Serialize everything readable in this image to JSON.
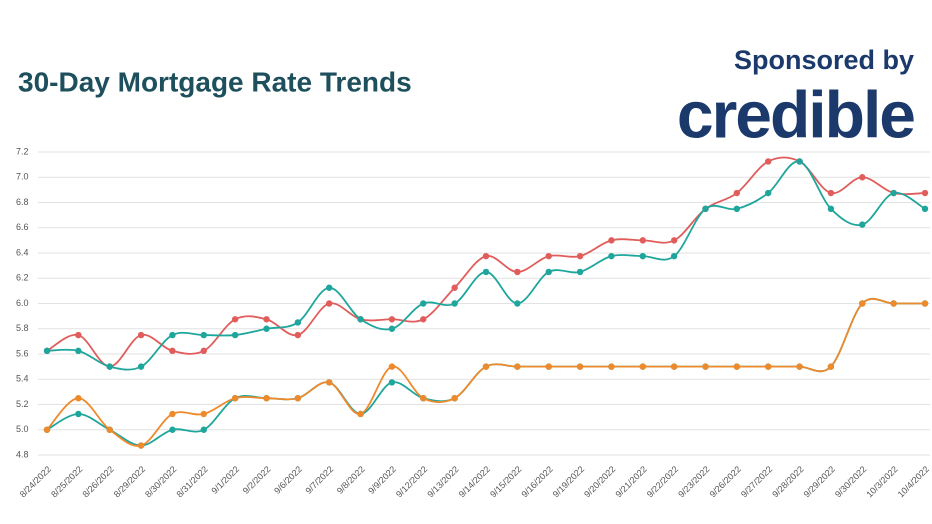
{
  "chart_data": {
    "type": "line",
    "title": "30-Day Mortgage Rate Trends",
    "sponsor_label": "Sponsored by",
    "sponsor_name": "credible",
    "categories": [
      "8/24/2022",
      "8/25/2022",
      "8/26/2022",
      "8/29/2022",
      "8/30/2022",
      "8/31/2022",
      "9/1/2022",
      "9/2/2022",
      "9/6/2022",
      "9/7/2022",
      "9/8/2022",
      "9/9/2022",
      "9/12/2022",
      "9/13/2022",
      "9/14/2022",
      "9/15/2022",
      "9/16/2022",
      "9/19/2022",
      "9/20/2022",
      "9/21/2022",
      "9/22/2022",
      "9/23/2022",
      "9/26/2022",
      "9/27/2022",
      "9/28/2022",
      "9/29/2022",
      "9/30/2022",
      "10/3/2022",
      "10/4/2022"
    ],
    "series": [
      {
        "color": "#e05d5b",
        "values": [
          5.625,
          5.75,
          5.5,
          5.75,
          5.625,
          5.625,
          5.875,
          5.875,
          5.75,
          6.0,
          5.875,
          5.875,
          5.875,
          6.125,
          6.375,
          6.25,
          6.375,
          6.375,
          6.5,
          6.5,
          6.5,
          6.75,
          6.875,
          7.125,
          7.125,
          6.875,
          7.0,
          6.875,
          6.875
        ]
      },
      {
        "color": "#1fa69c",
        "values": [
          5.625,
          5.625,
          5.5,
          5.5,
          5.75,
          5.75,
          5.75,
          5.8,
          5.85,
          6.125,
          5.875,
          5.8,
          6.0,
          6.0,
          6.25,
          6.0,
          6.25,
          6.25,
          6.375,
          6.375,
          6.375,
          6.75,
          6.75,
          6.875,
          7.125,
          6.75,
          6.625,
          6.875,
          6.75
        ]
      },
      {
        "color": "#1fa69c",
        "values": [
          5.0,
          5.125,
          5.0,
          4.875,
          5.0,
          5.0,
          5.25,
          5.25,
          5.25,
          5.375,
          5.125,
          5.375,
          5.25,
          5.25,
          5.5,
          5.5,
          5.5,
          5.5,
          5.5,
          5.5,
          5.5,
          5.5,
          5.5,
          5.5,
          5.5,
          5.5,
          6.0,
          6.0,
          6.0
        ]
      },
      {
        "color": "#ef8a2c",
        "values": [
          5.0,
          5.25,
          5.0,
          4.875,
          5.125,
          5.125,
          5.25,
          5.25,
          5.25,
          5.375,
          5.125,
          5.5,
          5.25,
          5.25,
          5.5,
          5.5,
          5.5,
          5.5,
          5.5,
          5.5,
          5.5,
          5.5,
          5.5,
          5.5,
          5.5,
          5.5,
          6.0,
          6.0,
          6.0
        ]
      }
    ],
    "ylim": [
      4.8,
      7.2
    ],
    "yticks": [
      4.8,
      {
        "value": 5,
        "label": "5.0"
      },
      5.2,
      5.4,
      5.6,
      5.8,
      {
        "value": 6,
        "label": "6.0"
      },
      6.2,
      6.4,
      6.6,
      6.8,
      {
        "value": 7,
        "label": "7.0"
      },
      7.2
    ],
    "grid": true
  }
}
